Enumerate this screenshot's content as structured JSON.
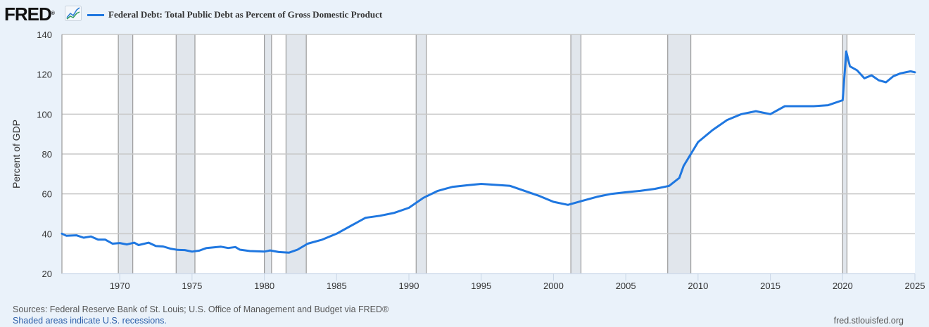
{
  "header": {
    "logo_text": "FRED",
    "logo_mark": "®",
    "icon": "line-chart-icon"
  },
  "footer": {
    "sources": "Sources: Federal Reserve Bank of St. Louis; U.S. Office of Management and Budget via FRED®",
    "note": "Shaded areas indicate U.S. recessions.",
    "url": "fred.stlouisfed.org"
  },
  "colors": {
    "series": "#1f77e0",
    "recession": "#e1e6ec",
    "background": "#eaf2fa",
    "grid": "#c8c8c8"
  },
  "chart_data": {
    "type": "line",
    "title": "",
    "xlabel": "",
    "ylabel": "Percent of GDP",
    "xlim": [
      1966.0,
      2025.0
    ],
    "ylim": [
      20,
      140
    ],
    "grid": true,
    "legend_position": "top-left",
    "x_ticks": [
      1970,
      1975,
      1980,
      1985,
      1990,
      1995,
      2000,
      2005,
      2010,
      2015,
      2020,
      2025
    ],
    "y_ticks": [
      20,
      40,
      60,
      80,
      100,
      120,
      140
    ],
    "recessions": [
      [
        1969.9,
        1970.9
      ],
      [
        1973.9,
        1975.2
      ],
      [
        1980.0,
        1980.5
      ],
      [
        1981.5,
        1982.9
      ],
      [
        1990.5,
        1991.2
      ],
      [
        2001.2,
        2001.9
      ],
      [
        2007.9,
        2009.5
      ],
      [
        2020.0,
        2020.3
      ]
    ],
    "series": [
      {
        "name": "Federal Debt: Total Public Debt as Percent of Gross Domestic Product",
        "x": [
          1966.0,
          1966.3,
          1967.0,
          1967.5,
          1968.0,
          1968.5,
          1969.0,
          1969.5,
          1970.0,
          1970.5,
          1971.0,
          1971.3,
          1972.0,
          1972.5,
          1973.0,
          1973.5,
          1974.0,
          1974.5,
          1975.0,
          1975.5,
          1976.0,
          1977.0,
          1977.5,
          1978.0,
          1978.3,
          1979.0,
          1980.0,
          1980.4,
          1981.0,
          1981.7,
          1982.3,
          1983.0,
          1984.0,
          1985.0,
          1986.0,
          1987.0,
          1988.0,
          1989.0,
          1990.0,
          1991.0,
          1992.0,
          1993.0,
          1994.0,
          1995.0,
          1996.0,
          1997.0,
          1998.0,
          1999.0,
          2000.0,
          2001.0,
          2002.0,
          2003.0,
          2004.0,
          2005.0,
          2006.0,
          2007.0,
          2008.0,
          2008.7,
          2009.0,
          2010.0,
          2011.0,
          2012.0,
          2013.0,
          2014.0,
          2015.0,
          2016.0,
          2017.0,
          2018.0,
          2019.0,
          2020.0,
          2020.25,
          2020.5,
          2021.0,
          2021.5,
          2022.0,
          2022.5,
          2023.0,
          2023.5,
          2024.0,
          2024.7,
          2025.0
        ],
        "values": [
          40.0,
          39.0,
          39.2,
          38.0,
          38.6,
          37.0,
          37.0,
          35.0,
          35.3,
          34.6,
          35.5,
          34.3,
          35.5,
          33.8,
          33.6,
          32.5,
          31.9,
          31.8,
          31.0,
          31.5,
          32.8,
          33.5,
          32.8,
          33.3,
          32.0,
          31.3,
          31.0,
          31.6,
          30.8,
          30.5,
          32.0,
          35.0,
          37.0,
          40.0,
          44.0,
          48.0,
          49.0,
          50.5,
          53.0,
          58.0,
          61.5,
          63.5,
          64.3,
          65.0,
          64.5,
          64.0,
          61.5,
          59.0,
          56.0,
          54.5,
          56.5,
          58.5,
          60.0,
          60.8,
          61.5,
          62.5,
          64.0,
          68.0,
          74.0,
          86.0,
          92.0,
          97.0,
          100.0,
          101.5,
          100.0,
          104.0,
          104.0,
          104.0,
          104.5,
          107.0,
          131.5,
          124.0,
          122.0,
          118.0,
          119.5,
          117.0,
          116.0,
          119.0,
          120.5,
          121.5,
          121.0
        ]
      }
    ]
  }
}
